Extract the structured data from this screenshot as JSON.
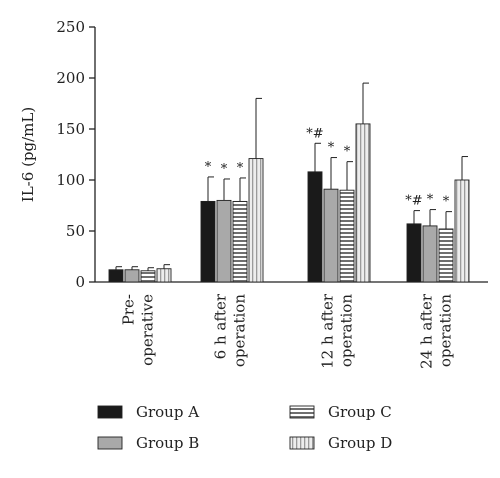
{
  "chart_data": {
    "type": "bar",
    "title": "",
    "xlabel": "",
    "ylabel": "IL-6 (pg/mL)",
    "ylim": [
      0,
      250
    ],
    "yticks": [
      0,
      50,
      100,
      150,
      200,
      250
    ],
    "grid": false,
    "legend_position": "bottom",
    "categories": [
      [
        "Pre-",
        "operative"
      ],
      [
        "6 h after",
        "operation"
      ],
      [
        "12 h after",
        "operation"
      ],
      [
        "24 h after",
        "operation"
      ]
    ],
    "series": [
      {
        "name": "Group A",
        "pattern": "solid",
        "color": "#1a1a1a",
        "values": [
          12,
          79,
          108,
          57
        ],
        "errors": [
          3,
          24,
          28,
          13
        ],
        "annotations": [
          "",
          "*",
          "*#",
          "*#"
        ]
      },
      {
        "name": "Group B",
        "pattern": "gray",
        "color": "#a9a9a9",
        "values": [
          12,
          80,
          91,
          55
        ],
        "errors": [
          3,
          21,
          31,
          16
        ],
        "annotations": [
          "",
          "*",
          "*",
          "*"
        ]
      },
      {
        "name": "Group C",
        "pattern": "horizontal-stripes",
        "color": "#8a8a8a",
        "values": [
          11,
          79,
          90,
          52
        ],
        "errors": [
          3,
          23,
          28,
          17
        ],
        "annotations": [
          "",
          "*",
          "*",
          "*"
        ]
      },
      {
        "name": "Group D",
        "pattern": "vertical-stripes",
        "color": "#e2e2e2",
        "values": [
          13,
          121,
          155,
          100
        ],
        "errors": [
          4,
          59,
          40,
          23
        ],
        "annotations": [
          "",
          "",
          "",
          ""
        ]
      }
    ]
  }
}
